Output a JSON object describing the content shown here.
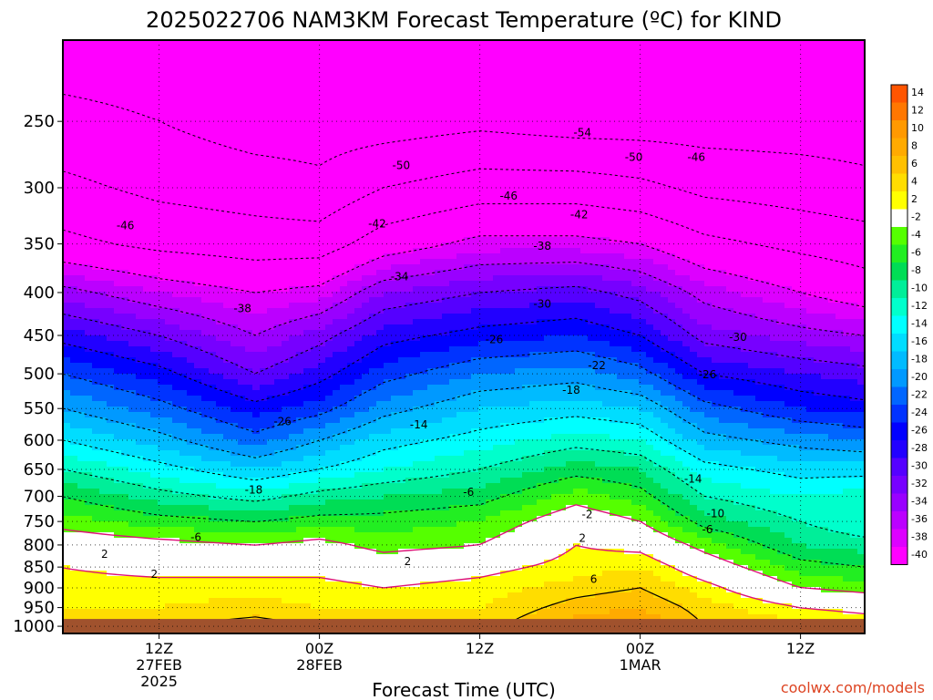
{
  "chart_data": {
    "type": "heatmap",
    "title": "2025022706 NAM3KM Forecast Temperature (ºC) for KIND",
    "xlabel": "Forecast Time (UTC)",
    "ylabel": "",
    "credit": "coolwx.com/models",
    "y_axis": {
      "scale": "log",
      "reversed": true,
      "range": [
        200,
        1020
      ],
      "units": "hPa",
      "ticks": [
        250,
        300,
        350,
        400,
        450,
        500,
        550,
        600,
        650,
        700,
        750,
        800,
        850,
        900,
        950,
        1000
      ]
    },
    "x_axis": {
      "range_hours_from_init": [
        6,
        56
      ],
      "ticks": [
        {
          "hour": 12,
          "lines": [
            "12Z",
            "27FEB",
            "2025"
          ]
        },
        {
          "hour": 22,
          "lines": [
            "00Z",
            "28FEB"
          ]
        },
        {
          "hour": 32,
          "lines": [
            "12Z"
          ]
        },
        {
          "hour": 42,
          "lines": [
            "00Z",
            "1MAR"
          ]
        },
        {
          "hour": 52,
          "lines": [
            "12Z"
          ]
        }
      ]
    },
    "colorbar": {
      "labels": [
        "14",
        "12",
        "10",
        "8",
        "6",
        "4",
        "2",
        "-2",
        "-4",
        "-6",
        "-8",
        "-10",
        "-12",
        "-14",
        "-16",
        "-18",
        "-20",
        "-22",
        "-24",
        "-26",
        "-28",
        "-30",
        "-32",
        "-34",
        "-36",
        "-38",
        "-40"
      ],
      "colors": [
        "#ff5500",
        "#ff7700",
        "#ff9900",
        "#ffaa00",
        "#ffc000",
        "#ffdd00",
        "#ffff00",
        "#ffffff",
        "#55ff00",
        "#22ee22",
        "#00dd55",
        "#00ee99",
        "#00ffcc",
        "#00ffff",
        "#00ddff",
        "#00bbff",
        "#0099ff",
        "#0066ff",
        "#0033ff",
        "#0000ff",
        "#2200ff",
        "#5500ff",
        "#7700ff",
        "#9900ff",
        "#bb00ff",
        "#dd00ff",
        "#ff00ff"
      ]
    },
    "surface_fill_color": "#a0522d",
    "temperature_profiles": {
      "pressure_levels": [
        1000,
        950,
        900,
        850,
        800,
        750,
        700,
        650,
        600,
        550,
        500,
        450,
        400,
        350,
        300,
        250,
        200
      ],
      "columns": [
        {
          "hour": 6,
          "temps": [
            6,
            4,
            3,
            2,
            0,
            -3,
            -6,
            -10,
            -14,
            -18,
            -22,
            -27,
            -33,
            -41,
            -45,
            -49,
            -52
          ]
        },
        {
          "hour": 12,
          "temps": [
            6,
            4,
            3,
            1,
            -1,
            -5,
            -9,
            -13,
            -17,
            -21,
            -25,
            -30,
            -36,
            -43,
            -47,
            -50,
            -52
          ]
        },
        {
          "hour": 18,
          "temps": [
            7,
            5,
            3,
            1,
            -2,
            -6,
            -11,
            -16,
            -21,
            -25,
            -30,
            -34,
            -38,
            -44,
            -48,
            -52,
            -53
          ]
        },
        {
          "hour": 22,
          "temps": [
            6,
            4,
            3,
            1,
            -1,
            -5,
            -9,
            -14,
            -18,
            -23,
            -27,
            -31,
            -37,
            -44,
            -49,
            -52,
            -53
          ]
        },
        {
          "hour": 26,
          "temps": [
            6,
            4,
            2,
            0,
            -3,
            -5,
            -8,
            -12,
            -15,
            -19,
            -23,
            -27,
            -32,
            -40,
            -46,
            -52,
            -54
          ]
        },
        {
          "hour": 32,
          "temps": [
            5,
            4,
            3,
            1,
            -2,
            -4,
            -7,
            -10,
            -13,
            -16,
            -20,
            -25,
            -30,
            -37,
            -44,
            -51,
            -54
          ]
        },
        {
          "hour": 38,
          "temps": [
            9,
            7,
            5,
            3,
            2,
            0,
            -3,
            -7,
            -11,
            -15,
            -19,
            -24,
            -29,
            -37,
            -44,
            -52,
            -55
          ]
        },
        {
          "hour": 42,
          "temps": [
            10,
            8,
            6,
            4,
            1,
            -2,
            -5,
            -8,
            -12,
            -16,
            -21,
            -26,
            -31,
            -38,
            -45,
            -52,
            -55
          ]
        },
        {
          "hour": 46,
          "temps": [
            6,
            5,
            3,
            0,
            -3,
            -7,
            -10,
            -13,
            -17,
            -21,
            -26,
            -31,
            -35,
            -41,
            -47,
            -52,
            -54
          ]
        },
        {
          "hour": 52,
          "temps": [
            5,
            2,
            -2,
            -5,
            -8,
            -10,
            -12,
            -15,
            -19,
            -24,
            -28,
            -33,
            -38,
            -43,
            -48,
            -52,
            -54
          ]
        },
        {
          "hour": 56,
          "temps": [
            4,
            1,
            -3,
            -6,
            -9,
            -12,
            -11,
            -15,
            -20,
            -25,
            -29,
            -34,
            -40,
            -44,
            -49,
            -52,
            -54
          ]
        }
      ]
    },
    "contour_labels": [
      {
        "text": "-54",
        "hour": 38.4,
        "p": 258
      },
      {
        "text": "-50",
        "hour": 27.1,
        "p": 282
      },
      {
        "text": "-50",
        "hour": 41.6,
        "p": 276
      },
      {
        "text": "-46",
        "hour": 45.5,
        "p": 276
      },
      {
        "text": "-46",
        "hour": 9.9,
        "p": 333
      },
      {
        "text": "-46",
        "hour": 33.8,
        "p": 307
      },
      {
        "text": "-42",
        "hour": 25.6,
        "p": 331
      },
      {
        "text": "-42",
        "hour": 38.2,
        "p": 323
      },
      {
        "text": "-38",
        "hour": 35.9,
        "p": 352
      },
      {
        "text": "-34",
        "hour": 27.0,
        "p": 383
      },
      {
        "text": "-38",
        "hour": 17.2,
        "p": 418
      },
      {
        "text": "-30",
        "hour": 35.9,
        "p": 413
      },
      {
        "text": "-30",
        "hour": 48.1,
        "p": 452
      },
      {
        "text": "-26",
        "hour": 32.9,
        "p": 455
      },
      {
        "text": "-22",
        "hour": 39.3,
        "p": 489
      },
      {
        "text": "-26",
        "hour": 46.2,
        "p": 501
      },
      {
        "text": "-18",
        "hour": 37.7,
        "p": 523
      },
      {
        "text": "-26",
        "hour": 19.7,
        "p": 570
      },
      {
        "text": "-14",
        "hour": 28.2,
        "p": 575
      },
      {
        "text": "-14",
        "hour": 45.3,
        "p": 667
      },
      {
        "text": "-18",
        "hour": 17.9,
        "p": 688
      },
      {
        "text": "-6",
        "hour": 31.3,
        "p": 692
      },
      {
        "text": "-10",
        "hour": 46.7,
        "p": 734
      },
      {
        "text": "-2",
        "hour": 38.7,
        "p": 736
      },
      {
        "text": "-6",
        "hour": 46.2,
        "p": 767
      },
      {
        "text": "-6",
        "hour": 14.3,
        "p": 783
      },
      {
        "text": "2",
        "hour": 38.4,
        "p": 785
      },
      {
        "text": "2",
        "hour": 8.6,
        "p": 820
      },
      {
        "text": "2",
        "hour": 27.5,
        "p": 837
      },
      {
        "text": "2",
        "hour": 11.7,
        "p": 867
      },
      {
        "text": "6",
        "hour": 39.1,
        "p": 879
      }
    ]
  }
}
